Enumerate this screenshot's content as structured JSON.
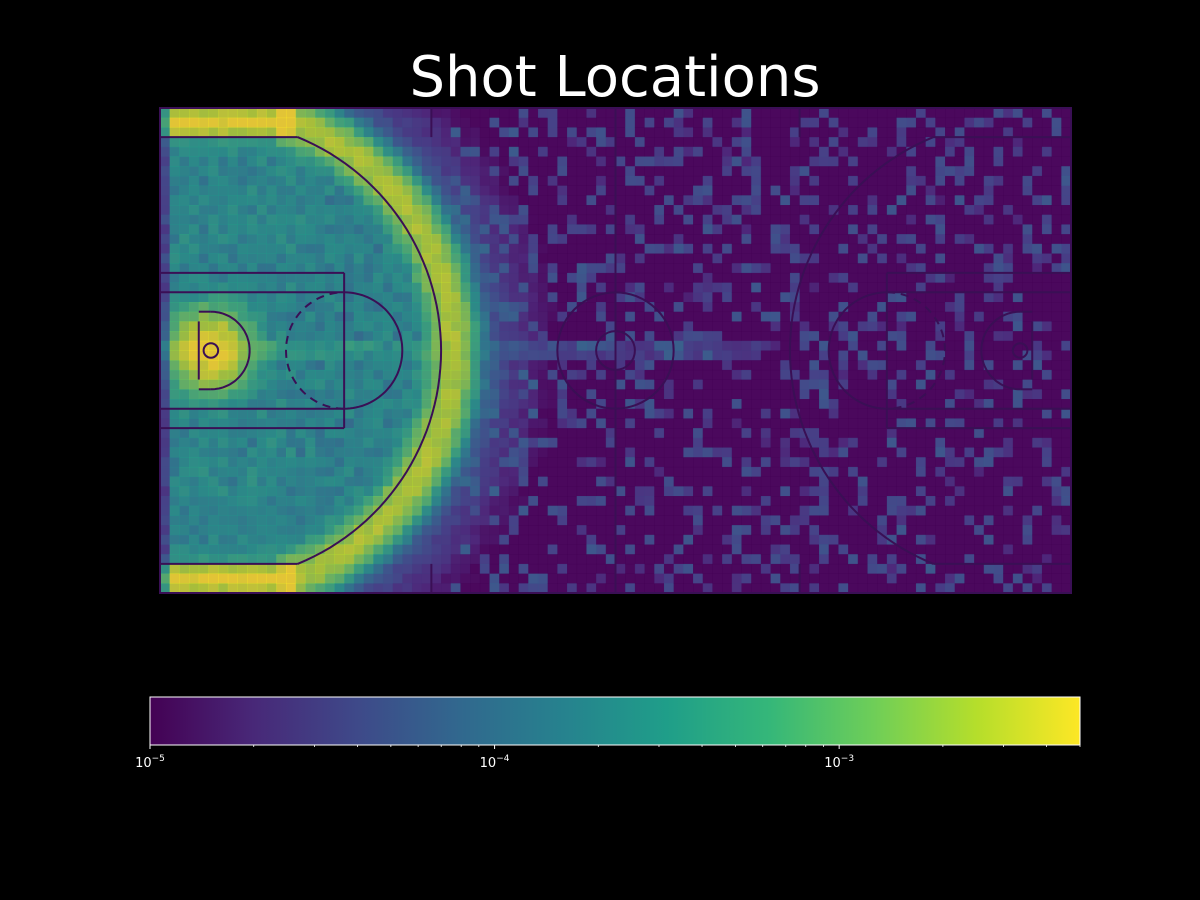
{
  "title": "Shot Locations",
  "colors": {
    "background": "#000000",
    "court_lines": "#3a0f55",
    "colormap": "viridis",
    "colormap_stops": [
      "#440154",
      "#482878",
      "#3e4989",
      "#31688e",
      "#26828e",
      "#1f9e89",
      "#35b779",
      "#6ece58",
      "#b5de2b",
      "#fde725"
    ]
  },
  "chart_data": {
    "type": "heatmap",
    "title": "Shot Locations",
    "xlabel": "",
    "ylabel": "",
    "grid": false,
    "color_scale": "log",
    "colorbar": {
      "orientation": "horizontal",
      "range": [
        1e-05,
        0.005
      ],
      "ticks": [
        {
          "value": 1e-05,
          "base": "10",
          "exp": "−5"
        },
        {
          "value": 0.0001,
          "base": "10",
          "exp": "−4"
        },
        {
          "value": 0.001,
          "base": "10",
          "exp": "−3"
        }
      ]
    },
    "court": {
      "length_ft": 94,
      "width_ft": 50
    },
    "density_features": {
      "background_level": 1e-05,
      "rim_peak": 0.005,
      "three_point_arc_level": 0.0025,
      "corner_three_level": 0.005,
      "midrange_level": 0.0003,
      "backcourt_level": 2e-05
    }
  }
}
